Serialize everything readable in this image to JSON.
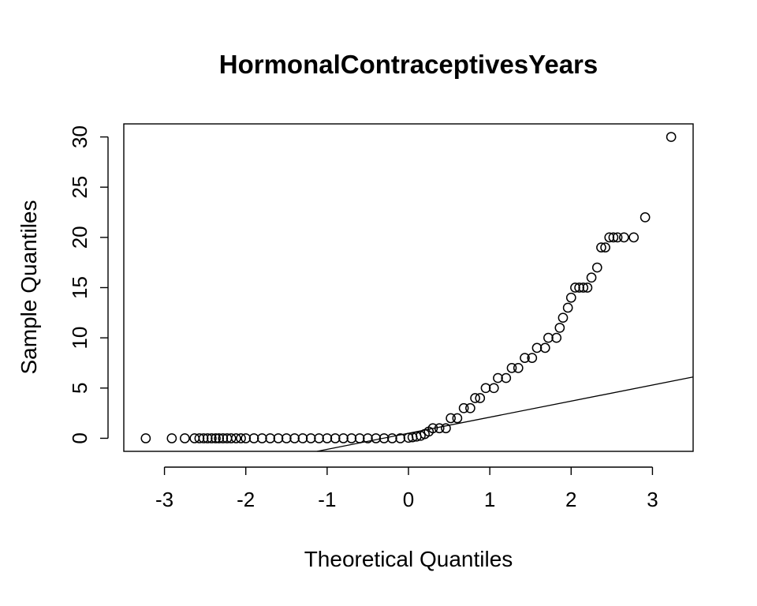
{
  "chart_data": {
    "type": "scatter",
    "title": "HormonalContraceptivesYears",
    "xlabel": "Theoretical Quantiles",
    "ylabel": "Sample Quantiles",
    "xlim": [
      -3.5,
      3.5
    ],
    "ylim": [
      -1.3,
      31.3
    ],
    "xticks": [
      -3,
      -2,
      -1,
      0,
      1,
      2,
      3
    ],
    "yticks": [
      0,
      5,
      10,
      15,
      20,
      25,
      30
    ],
    "reference_line": {
      "intercept": 0.5,
      "slope": 1.6
    },
    "points": [
      {
        "x": -3.23,
        "y": 0
      },
      {
        "x": -2.91,
        "y": 0
      },
      {
        "x": -2.75,
        "y": 0
      },
      {
        "x": -2.63,
        "y": 0
      },
      {
        "x": -2.57,
        "y": 0
      },
      {
        "x": -2.52,
        "y": 0
      },
      {
        "x": -2.47,
        "y": 0
      },
      {
        "x": -2.42,
        "y": 0
      },
      {
        "x": -2.37,
        "y": 0
      },
      {
        "x": -2.33,
        "y": 0
      },
      {
        "x": -2.28,
        "y": 0
      },
      {
        "x": -2.23,
        "y": 0
      },
      {
        "x": -2.18,
        "y": 0
      },
      {
        "x": -2.12,
        "y": 0
      },
      {
        "x": -2.06,
        "y": 0
      },
      {
        "x": -2.0,
        "y": 0
      },
      {
        "x": -1.9,
        "y": 0
      },
      {
        "x": -1.8,
        "y": 0
      },
      {
        "x": -1.7,
        "y": 0
      },
      {
        "x": -1.6,
        "y": 0
      },
      {
        "x": -1.5,
        "y": 0
      },
      {
        "x": -1.4,
        "y": 0
      },
      {
        "x": -1.3,
        "y": 0
      },
      {
        "x": -1.2,
        "y": 0
      },
      {
        "x": -1.1,
        "y": 0
      },
      {
        "x": -1.0,
        "y": 0
      },
      {
        "x": -0.9,
        "y": 0
      },
      {
        "x": -0.8,
        "y": 0
      },
      {
        "x": -0.7,
        "y": 0
      },
      {
        "x": -0.6,
        "y": 0
      },
      {
        "x": -0.5,
        "y": 0
      },
      {
        "x": -0.4,
        "y": 0
      },
      {
        "x": -0.3,
        "y": 0
      },
      {
        "x": -0.2,
        "y": 0
      },
      {
        "x": -0.1,
        "y": 0
      },
      {
        "x": 0.0,
        "y": 0.05
      },
      {
        "x": 0.05,
        "y": 0.1
      },
      {
        "x": 0.1,
        "y": 0.17
      },
      {
        "x": 0.15,
        "y": 0.25
      },
      {
        "x": 0.2,
        "y": 0.42
      },
      {
        "x": 0.25,
        "y": 0.67
      },
      {
        "x": 0.3,
        "y": 1
      },
      {
        "x": 0.38,
        "y": 1
      },
      {
        "x": 0.46,
        "y": 1
      },
      {
        "x": 0.52,
        "y": 2
      },
      {
        "x": 0.6,
        "y": 2
      },
      {
        "x": 0.68,
        "y": 3
      },
      {
        "x": 0.76,
        "y": 3
      },
      {
        "x": 0.82,
        "y": 4
      },
      {
        "x": 0.88,
        "y": 4
      },
      {
        "x": 0.95,
        "y": 5
      },
      {
        "x": 1.05,
        "y": 5
      },
      {
        "x": 1.1,
        "y": 6
      },
      {
        "x": 1.2,
        "y": 6
      },
      {
        "x": 1.27,
        "y": 7
      },
      {
        "x": 1.35,
        "y": 7
      },
      {
        "x": 1.43,
        "y": 8
      },
      {
        "x": 1.52,
        "y": 8
      },
      {
        "x": 1.58,
        "y": 9
      },
      {
        "x": 1.68,
        "y": 9
      },
      {
        "x": 1.72,
        "y": 10
      },
      {
        "x": 1.82,
        "y": 10
      },
      {
        "x": 1.86,
        "y": 11
      },
      {
        "x": 1.9,
        "y": 12
      },
      {
        "x": 1.96,
        "y": 13
      },
      {
        "x": 2.0,
        "y": 14
      },
      {
        "x": 2.05,
        "y": 15
      },
      {
        "x": 2.1,
        "y": 15
      },
      {
        "x": 2.15,
        "y": 15
      },
      {
        "x": 2.2,
        "y": 15
      },
      {
        "x": 2.25,
        "y": 16
      },
      {
        "x": 2.32,
        "y": 17
      },
      {
        "x": 2.37,
        "y": 19
      },
      {
        "x": 2.42,
        "y": 19
      },
      {
        "x": 2.47,
        "y": 20
      },
      {
        "x": 2.52,
        "y": 20
      },
      {
        "x": 2.57,
        "y": 20
      },
      {
        "x": 2.65,
        "y": 20
      },
      {
        "x": 2.77,
        "y": 20
      },
      {
        "x": 2.91,
        "y": 22
      },
      {
        "x": 3.23,
        "y": 30
      }
    ]
  }
}
